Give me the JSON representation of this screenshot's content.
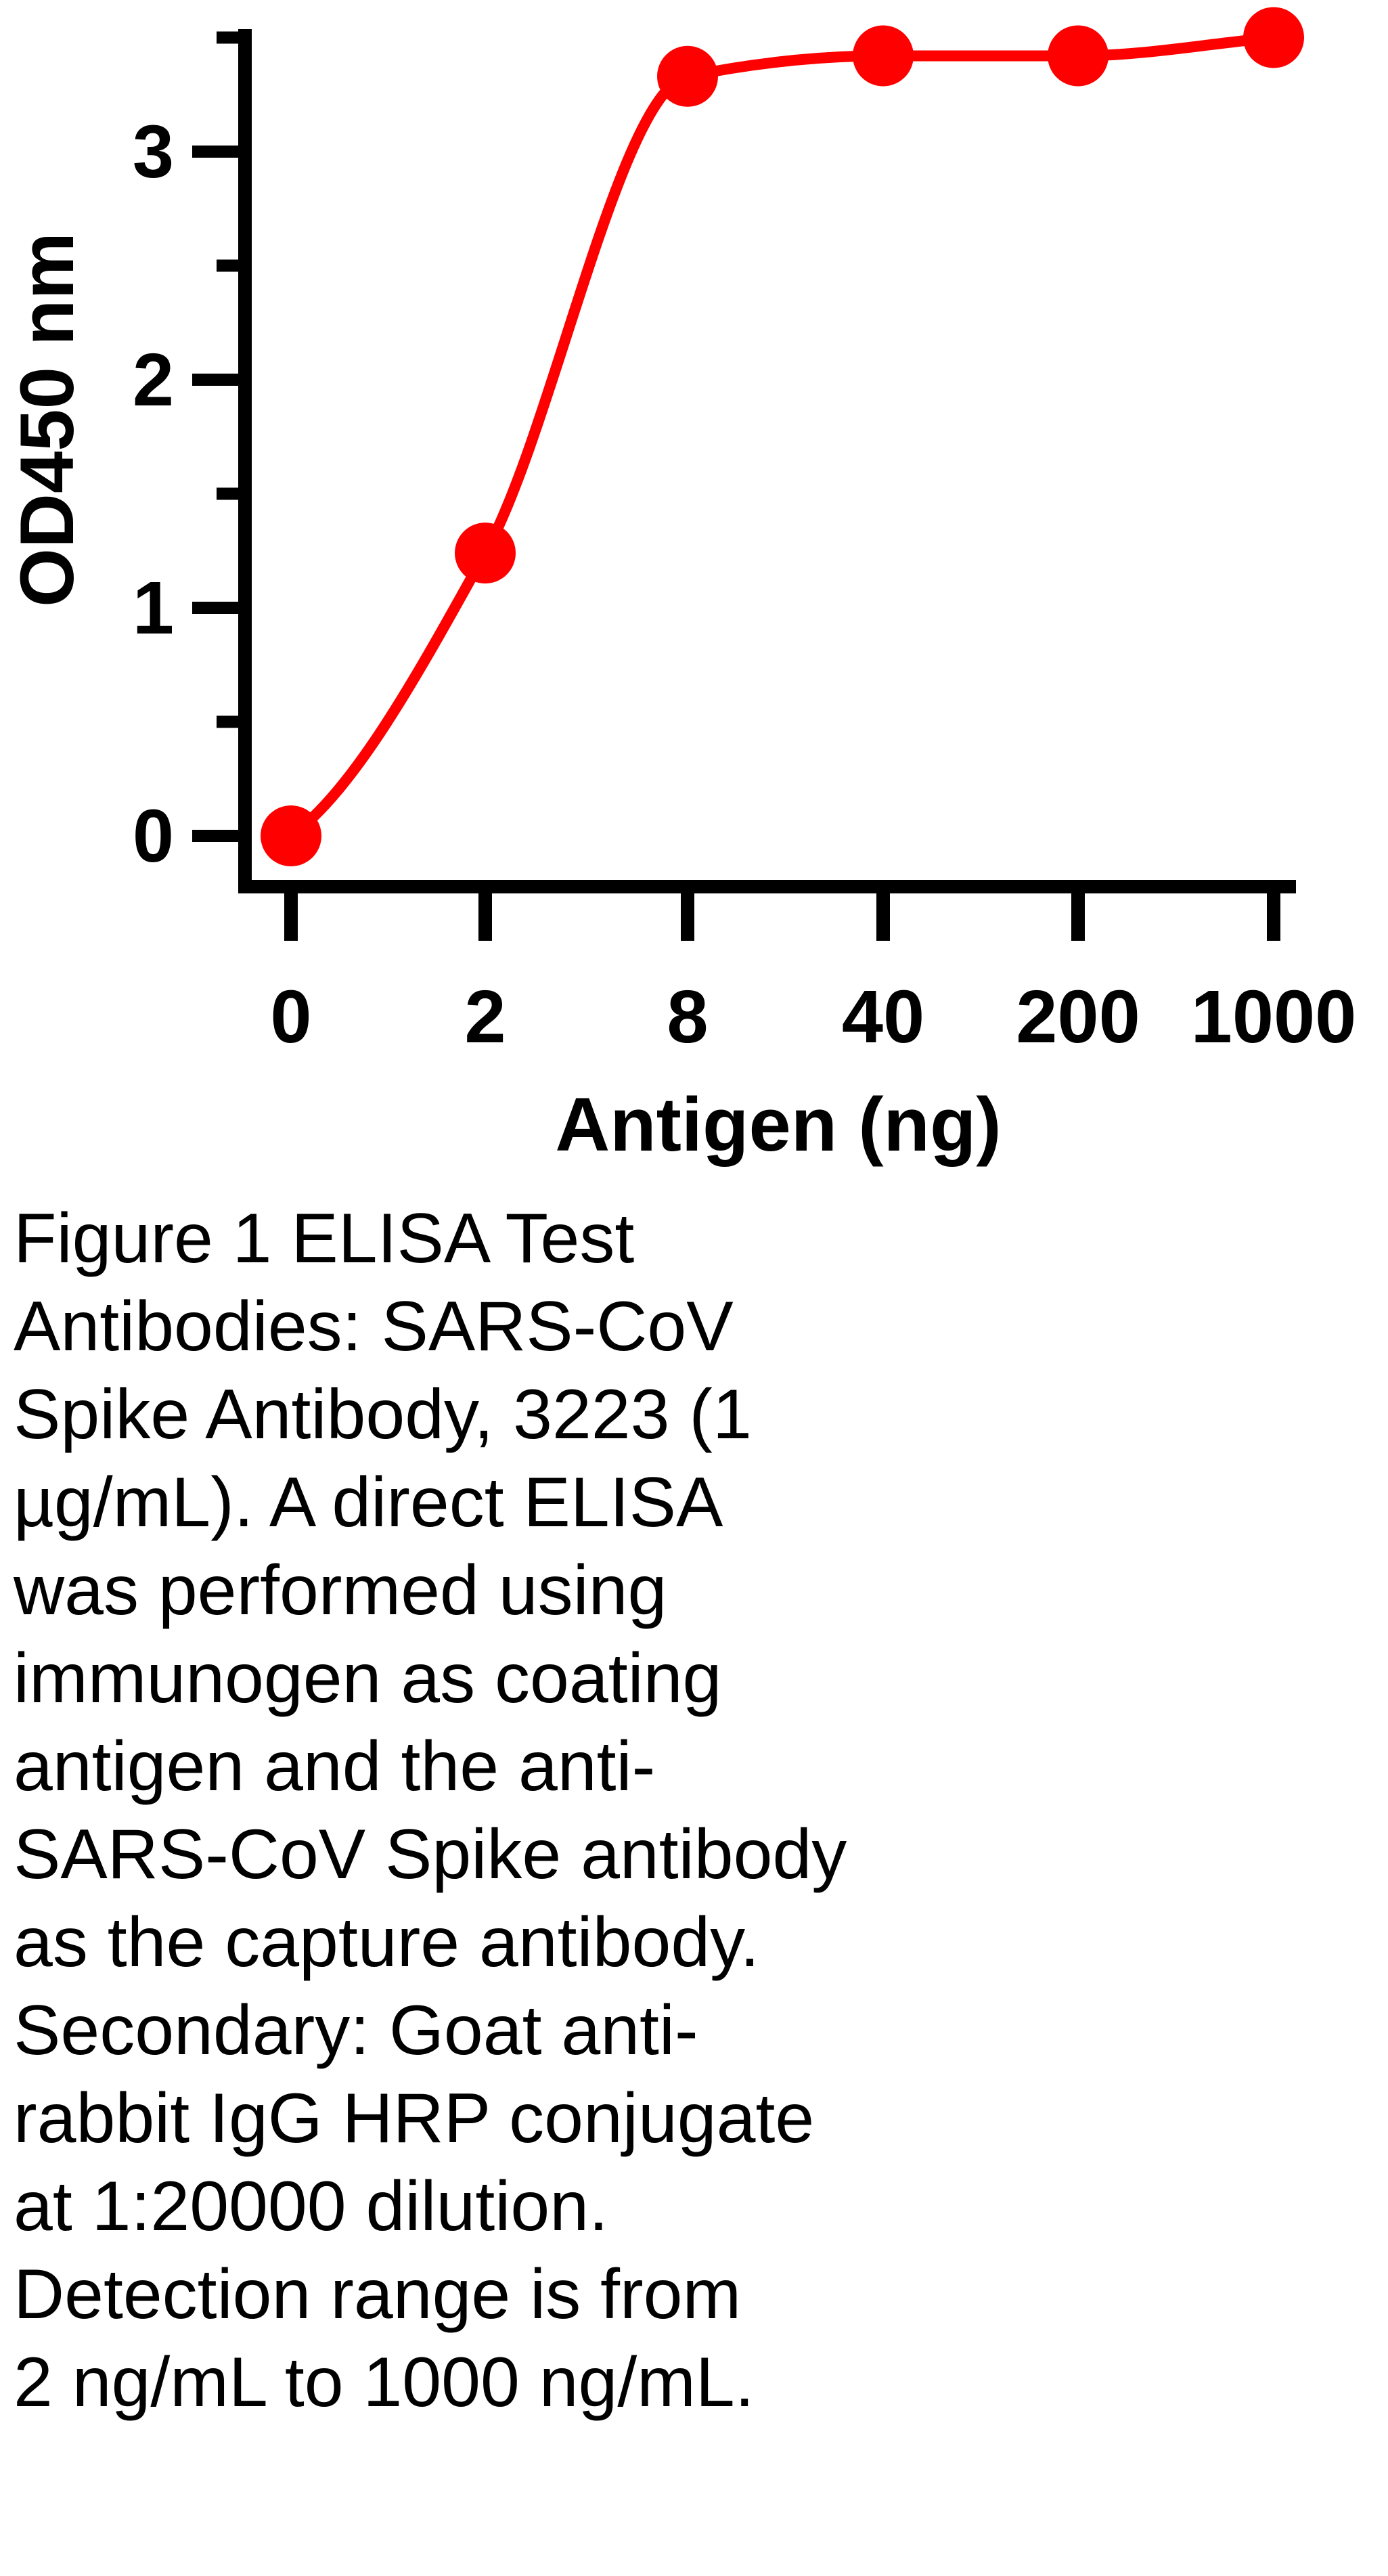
{
  "chart_data": {
    "type": "line",
    "xlabel": "Antigen (ng)",
    "ylabel": "OD450 nm",
    "categories": [
      "0",
      "2",
      "8",
      "40",
      "200",
      "1000"
    ],
    "series": [
      {
        "values": [
          0,
          1.24,
          3.33,
          3.42,
          3.42,
          3.5
        ],
        "color": "#ff0000",
        "marker": "circle"
      }
    ],
    "y_ticks": [
      "0",
      "1",
      "2",
      "3"
    ],
    "ylim": [
      -0.1,
      3.5
    ],
    "y_minor_step": 0.5,
    "grid": false,
    "legend": "none"
  },
  "caption": {
    "lines": [
      "Figure 1 ELISA Test",
      "Antibodies: SARS-CoV",
      "Spike Antibody, 3223 (1",
      "µg/mL). A direct ELISA",
      "was performed using",
      "immunogen as coating",
      "antigen and the anti-",
      "SARS-CoV Spike antibody",
      "as the capture antibody.",
      "Secondary: Goat anti-",
      "rabbit IgG HRP conjugate",
      "at 1:20000 dilution.",
      "Detection range is from",
      "2 ng/mL to 1000 ng/mL."
    ]
  }
}
